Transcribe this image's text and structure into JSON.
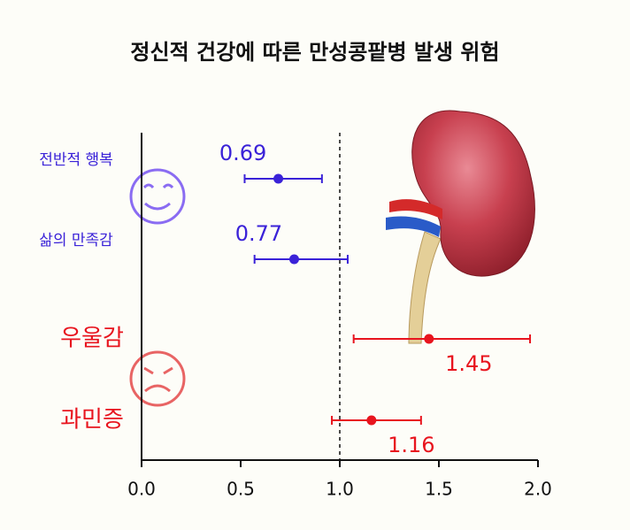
{
  "chart_data": {
    "type": "forest",
    "title": "정신적 건강에 따른 만성콩팥병 발생 위험",
    "categories": [
      "전반적 행복",
      "삶의 만족감",
      "우울감",
      "과민증"
    ],
    "values": [
      0.69,
      0.77,
      1.45,
      1.16
    ],
    "lower": [
      0.52,
      0.57,
      1.07,
      0.96
    ],
    "upper": [
      0.91,
      1.04,
      1.96,
      1.41
    ],
    "colors": [
      "#3a22d8",
      "#3a22d8",
      "#e8141e",
      "#e8141e"
    ],
    "xlim": [
      0,
      2
    ],
    "xticks": [
      {
        "value": 0,
        "label": "0.0"
      },
      {
        "value": 0.5,
        "label": "0.5"
      },
      {
        "value": 1,
        "label": "1.0"
      },
      {
        "value": 1.5,
        "label": "1.5"
      },
      {
        "value": 2,
        "label": "2.0"
      }
    ],
    "reference_line": 1
  }
}
